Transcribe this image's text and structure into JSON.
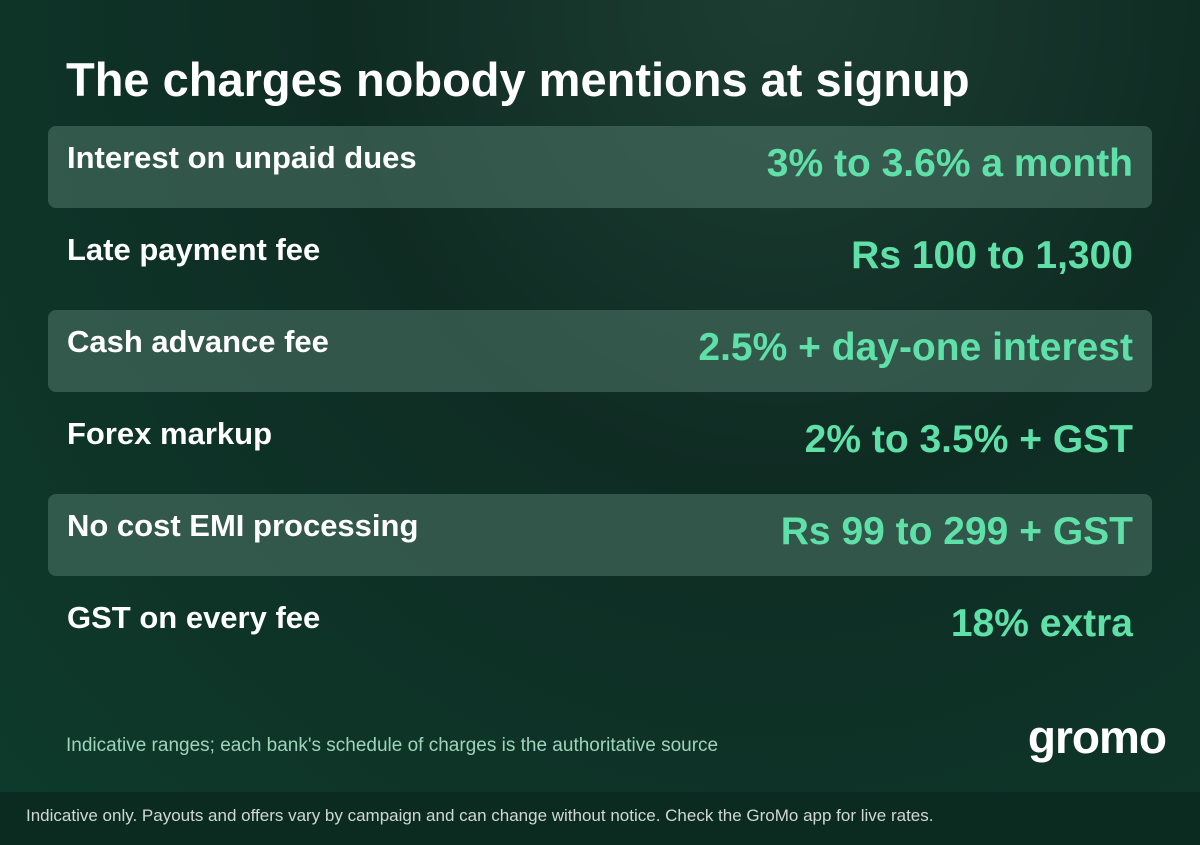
{
  "header": {
    "title": "The charges nobody mentions at signup"
  },
  "table": {
    "rows": [
      [
        "Interest on unpaid dues",
        "3% to 3.6% a month"
      ],
      [
        "Late payment fee",
        "Rs 100 to 1,300"
      ],
      [
        "Cash advance fee",
        "2.5% + day-one interest"
      ],
      [
        "Forex markup",
        "2% to 3.5% + GST"
      ],
      [
        "No cost EMI processing",
        "Rs 99 to 299 + GST"
      ],
      [
        "GST on every fee",
        "18% extra"
      ]
    ]
  },
  "note": "Indicative ranges; each bank's schedule of charges is the authoritative source",
  "logo": "gromo",
  "footer": "Indicative only. Payouts and offers vary by campaign and can change without notice. Check the GroMo app for live rates."
}
